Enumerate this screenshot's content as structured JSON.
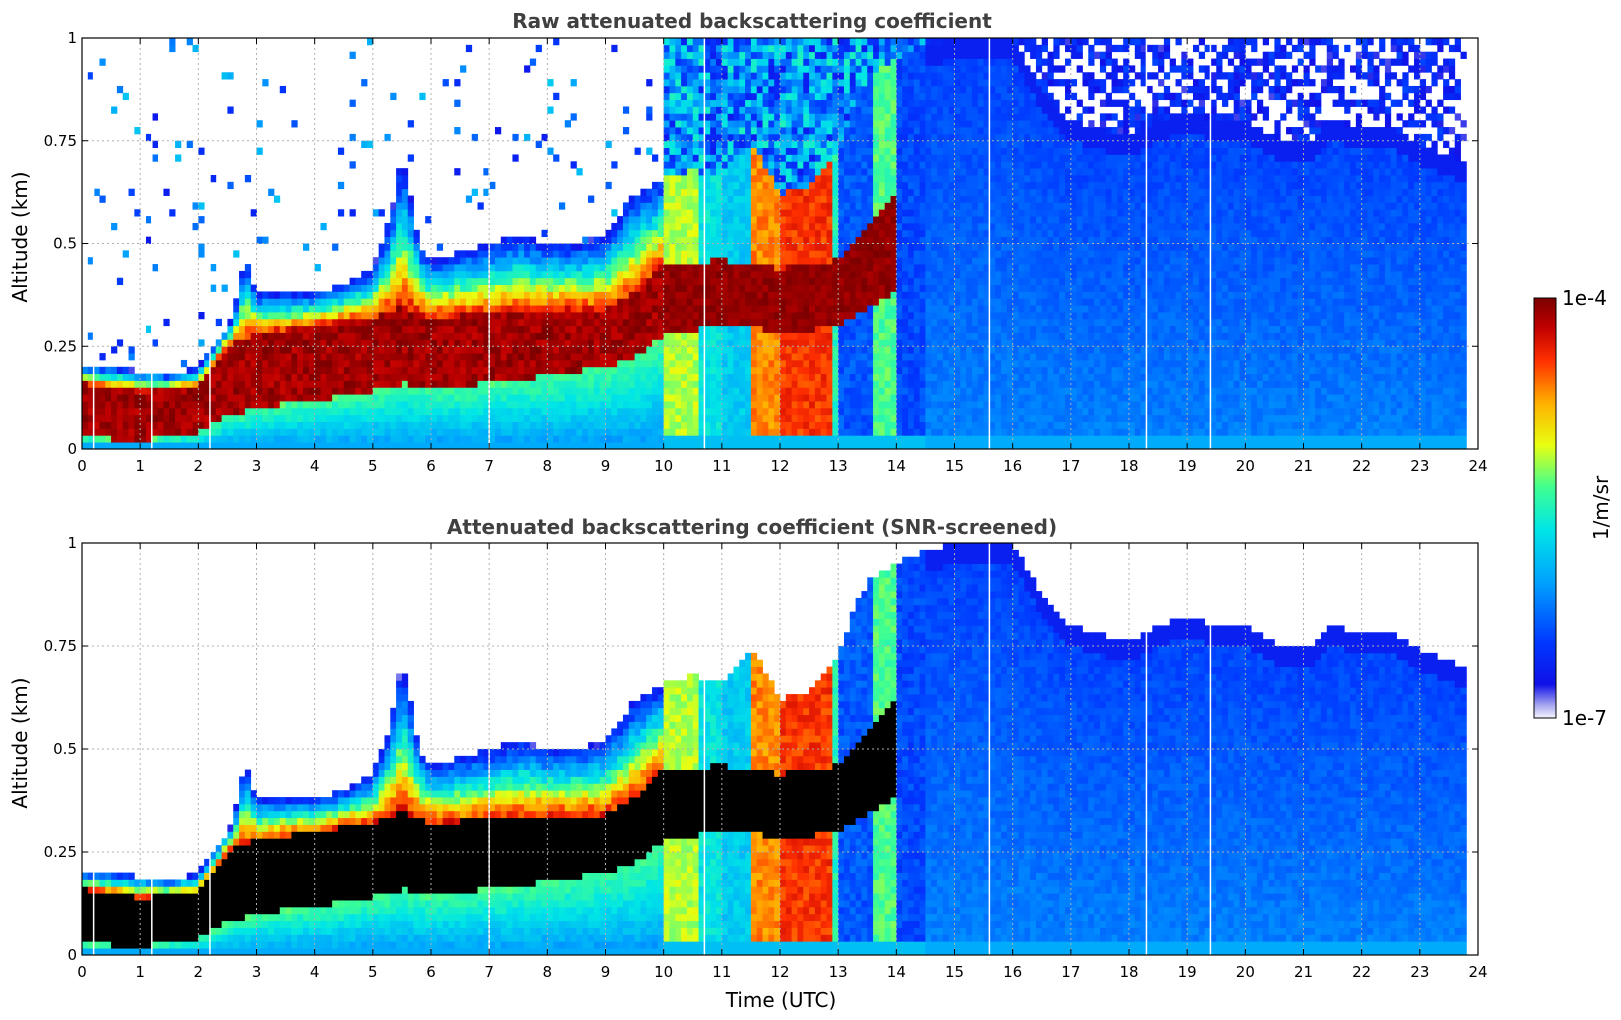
{
  "chart_data": [
    {
      "type": "heatmap",
      "title": "Raw attenuated backscattering coefficient",
      "xlabel": "",
      "ylabel": "Altitude (km)",
      "xlim": [
        0,
        24
      ],
      "ylim": [
        0,
        1
      ],
      "xticks": [
        "0",
        "1",
        "2",
        "3",
        "4",
        "5",
        "6",
        "7",
        "8",
        "9",
        "10",
        "11",
        "12",
        "13",
        "14",
        "15",
        "16",
        "17",
        "18",
        "19",
        "20",
        "21",
        "22",
        "23",
        "24"
      ],
      "yticks": [
        "0",
        "0.25",
        "0.5",
        "0.75",
        "1"
      ],
      "grid": true,
      "screened": false
    },
    {
      "type": "heatmap",
      "title": "Attenuated backscattering coefficient (SNR-screened)",
      "xlabel": "Time (UTC)",
      "ylabel": "Altitude (km)",
      "xlim": [
        0,
        24
      ],
      "ylim": [
        0,
        1
      ],
      "xticks": [
        "0",
        "1",
        "2",
        "3",
        "4",
        "5",
        "6",
        "7",
        "8",
        "9",
        "10",
        "11",
        "12",
        "13",
        "14",
        "15",
        "16",
        "17",
        "18",
        "19",
        "20",
        "21",
        "22",
        "23",
        "24"
      ],
      "yticks": [
        "0",
        "0.25",
        "0.5",
        "0.75",
        "1"
      ],
      "grid": true,
      "screened": true
    }
  ],
  "colorbar": {
    "max_label": "1e-4",
    "min_label": "1e-7",
    "unit_label": "1/m/sr",
    "scale": "log"
  },
  "profiles": {
    "layer_top_km": [
      [
        0,
        0.2
      ],
      [
        0.5,
        0.2
      ],
      [
        1,
        0.19
      ],
      [
        1.5,
        0.18
      ],
      [
        2,
        0.2
      ],
      [
        2.3,
        0.26
      ],
      [
        2.6,
        0.32
      ],
      [
        2.8,
        0.48
      ],
      [
        3,
        0.38
      ],
      [
        3.5,
        0.38
      ],
      [
        4,
        0.38
      ],
      [
        4.5,
        0.4
      ],
      [
        5,
        0.44
      ],
      [
        5.3,
        0.55
      ],
      [
        5.5,
        0.72
      ],
      [
        5.8,
        0.5
      ],
      [
        6,
        0.46
      ],
      [
        6.5,
        0.48
      ],
      [
        7,
        0.5
      ],
      [
        7.5,
        0.52
      ],
      [
        8,
        0.5
      ],
      [
        8.5,
        0.5
      ],
      [
        9,
        0.52
      ],
      [
        9.5,
        0.62
      ],
      [
        10,
        0.66
      ],
      [
        10.5,
        0.68
      ],
      [
        11,
        0.66
      ],
      [
        11.5,
        0.75
      ],
      [
        12,
        0.62
      ],
      [
        12.5,
        0.64
      ],
      [
        13,
        0.72
      ],
      [
        13.3,
        0.85
      ],
      [
        13.6,
        0.92
      ],
      [
        14,
        0.95
      ],
      [
        14.5,
        0.98
      ],
      [
        15,
        1
      ],
      [
        16,
        1
      ],
      [
        16.3,
        0.92
      ],
      [
        16.6,
        0.86
      ],
      [
        17,
        0.8
      ],
      [
        17.5,
        0.78
      ],
      [
        18,
        0.76
      ],
      [
        18.5,
        0.8
      ],
      [
        19,
        0.82
      ],
      [
        19.5,
        0.8
      ],
      [
        20,
        0.8
      ],
      [
        20.5,
        0.76
      ],
      [
        21,
        0.74
      ],
      [
        21.5,
        0.8
      ],
      [
        22,
        0.78
      ],
      [
        22.5,
        0.78
      ],
      [
        23,
        0.74
      ],
      [
        23.4,
        0.72
      ],
      [
        23.8,
        0.7
      ]
    ],
    "core_top_km": [
      [
        0,
        0.16
      ],
      [
        1,
        0.14
      ],
      [
        2,
        0.15
      ],
      [
        2.5,
        0.25
      ],
      [
        3,
        0.28
      ],
      [
        4,
        0.3
      ],
      [
        5,
        0.32
      ],
      [
        5.5,
        0.35
      ],
      [
        6,
        0.32
      ],
      [
        7,
        0.33
      ],
      [
        8,
        0.34
      ],
      [
        9,
        0.34
      ],
      [
        9.5,
        0.38
      ],
      [
        10,
        0.45
      ],
      [
        11,
        0.46
      ],
      [
        12,
        0.44
      ],
      [
        13,
        0.46
      ],
      [
        13.5,
        0.55
      ],
      [
        14,
        0.62
      ]
    ],
    "core_bottom_km": [
      [
        0,
        0.03
      ],
      [
        1,
        0.02
      ],
      [
        2,
        0.04
      ],
      [
        2.5,
        0.08
      ],
      [
        3,
        0.1
      ],
      [
        4,
        0.12
      ],
      [
        5,
        0.14
      ],
      [
        5.5,
        0.16
      ],
      [
        6,
        0.15
      ],
      [
        7,
        0.16
      ],
      [
        8,
        0.18
      ],
      [
        9,
        0.2
      ],
      [
        9.5,
        0.22
      ],
      [
        10,
        0.28
      ],
      [
        11,
        0.3
      ],
      [
        11.5,
        0.3
      ],
      [
        12,
        0.28
      ],
      [
        13,
        0.3
      ],
      [
        13.5,
        0.34
      ],
      [
        14,
        0.38
      ]
    ],
    "fog_columns_utc": [
      {
        "x0": 10.0,
        "x1": 10.6,
        "value": 0.62
      },
      {
        "x0": 10.6,
        "x1": 11.0,
        "value": 0.45
      },
      {
        "x0": 11.0,
        "x1": 11.55,
        "value": 0.4
      },
      {
        "x0": 11.55,
        "x1": 12.0,
        "value": 0.78
      },
      {
        "x0": 12.0,
        "x1": 12.9,
        "value": 0.85
      },
      {
        "x0": 12.9,
        "x1": 13.0,
        "value": 0.5
      },
      {
        "x0": 13.0,
        "x1": 13.6,
        "value": 0.22
      },
      {
        "x0": 13.6,
        "x1": 14.0,
        "value": 0.55
      },
      {
        "x0": 14.0,
        "x1": 14.5,
        "value": 0.2
      }
    ],
    "dropout_lines_utc": [
      0.2,
      1.2,
      2.2,
      7.0,
      10.7,
      15.6,
      18.3,
      19.4
    ],
    "data_end_utc": 23.8
  }
}
